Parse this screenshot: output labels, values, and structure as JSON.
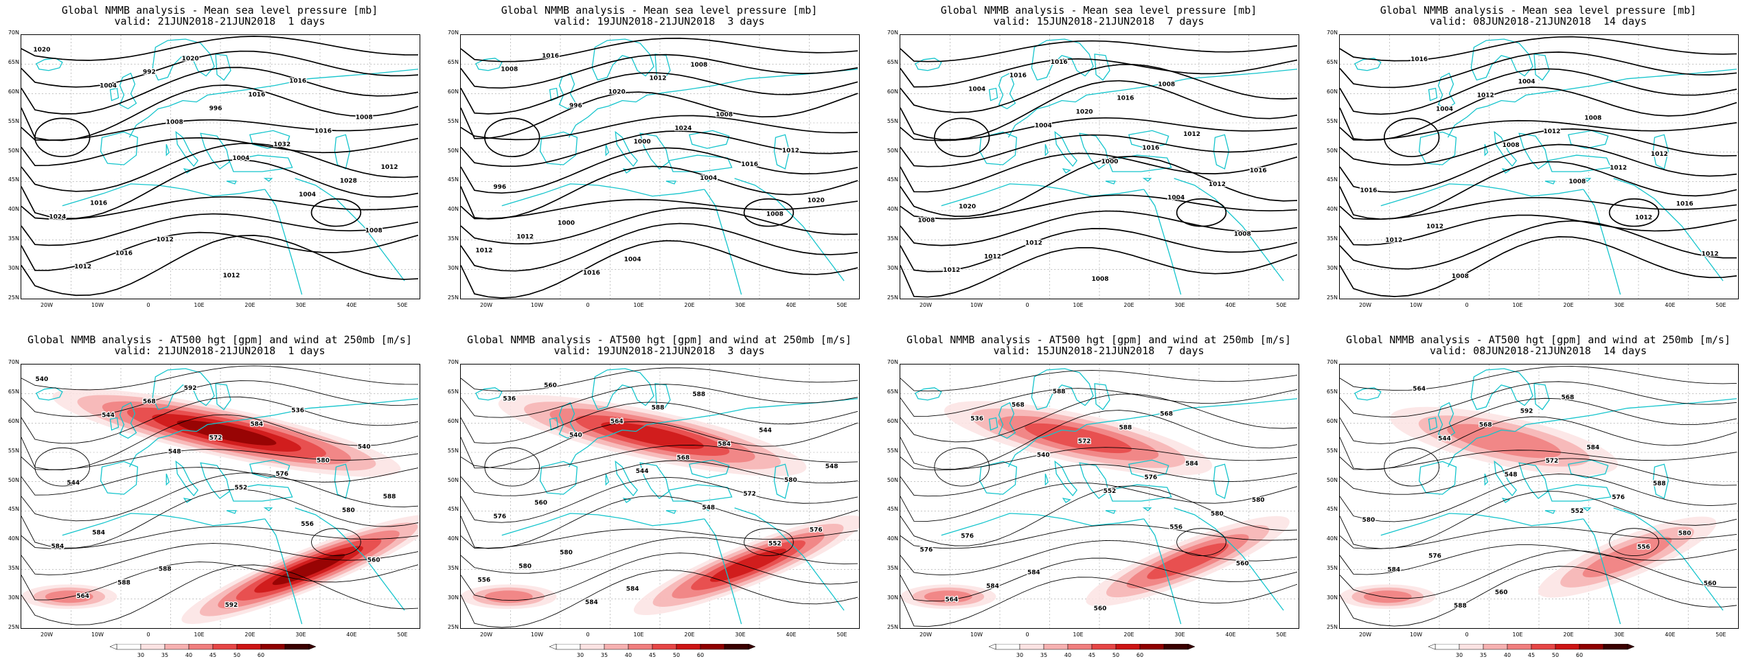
{
  "colors": {
    "coast": "#13c4cc",
    "isobar": "#000000",
    "grid": "#9a9a9a",
    "wind_scale": [
      "#fbe3e3",
      "#f6b1b1",
      "#f07e7e",
      "#e64646",
      "#cc1414",
      "#8e0000",
      "#3a0000"
    ]
  },
  "axes": {
    "lat_labels": [
      "70N",
      "65N",
      "60N",
      "55N",
      "50N",
      "45N",
      "40N",
      "35N",
      "30N",
      "25N"
    ],
    "lon_labels": [
      "20W",
      "10W",
      "0",
      "10E",
      "20E",
      "30E",
      "40E",
      "50E"
    ]
  },
  "top_row": [
    {
      "title": "Global NMMB analysis - Mean sea level pressure [mb]",
      "valid": "valid: 21JUN2018-21JUN2018  1 days",
      "isobar_labels": [
        "1020",
        "1004",
        "1008",
        "1004",
        "1004",
        "1008",
        "1012",
        "992",
        "996",
        "1032",
        "1028",
        "1024",
        "1016",
        "1020",
        "1016",
        "1016",
        "1012",
        "1016",
        "1012",
        "1012",
        "1016",
        "1008"
      ]
    },
    {
      "title": "Global NMMB analysis - Mean sea level pressure [mb]",
      "valid": "valid: 19JUN2018-21JUN2018  3 days",
      "isobar_labels": [
        "1008",
        "996",
        "1000",
        "1004",
        "1008",
        "1012",
        "1016",
        "1020",
        "1024",
        "1016",
        "1020",
        "1012",
        "1016",
        "1012",
        "1008",
        "1012",
        "996",
        "1000",
        "1004",
        "1008"
      ]
    },
    {
      "title": "Global NMMB analysis - Mean sea level pressure [mb]",
      "valid": "valid: 15JUN2018-21JUN2018  7 days",
      "isobar_labels": [
        "1004",
        "1004",
        "1000",
        "1004",
        "1008",
        "1012",
        "1016",
        "1020",
        "1016",
        "1012",
        "1008",
        "1012",
        "1016",
        "1016",
        "1012",
        "1016",
        "1020",
        "1012",
        "1008",
        "1008"
      ]
    },
    {
      "title": "Global NMMB analysis - Mean sea level pressure [mb]",
      "valid": "valid: 08JUN2018-21JUN2018  14 days",
      "isobar_labels": [
        "1004",
        "1008",
        "1008",
        "1012",
        "1012",
        "1016",
        "1012",
        "1012",
        "1012",
        "1016",
        "1012",
        "1008",
        "1004",
        "1008",
        "1012",
        "1016",
        "1012"
      ]
    }
  ],
  "bottom_row": [
    {
      "title": "Global NMMB analysis - AT500 hgt [gpm] and wind at 250mb [m/s]",
      "valid": "valid: 21JUN2018-21JUN2018  1 days",
      "height_labels": [
        "540",
        "544",
        "548",
        "552",
        "556",
        "560",
        "564",
        "568",
        "572",
        "576",
        "580",
        "584",
        "588",
        "592",
        "584",
        "580",
        "588",
        "584",
        "588",
        "592",
        "536",
        "540",
        "544"
      ]
    },
    {
      "title": "Global NMMB analysis - AT500 hgt [gpm] and wind at 250mb [m/s]",
      "valid": "valid: 19JUN2018-21JUN2018  3 days",
      "height_labels": [
        "536",
        "540",
        "544",
        "548",
        "552",
        "556",
        "560",
        "564",
        "568",
        "572",
        "576",
        "580",
        "584",
        "588",
        "584",
        "580",
        "576",
        "580",
        "584",
        "588",
        "544",
        "548",
        "560"
      ]
    },
    {
      "title": "Global NMMB analysis - AT500 hgt [gpm] and wind at 250mb [m/s]",
      "valid": "valid: 15JUN2018-21JUN2018  7 days",
      "height_labels": [
        "536",
        "540",
        "552",
        "556",
        "560",
        "564",
        "568",
        "572",
        "576",
        "580",
        "576",
        "584",
        "588",
        "588",
        "584",
        "580",
        "576",
        "584",
        "560",
        "568"
      ]
    },
    {
      "title": "Global NMMB analysis - AT500 hgt [gpm] and wind at 250mb [m/s]",
      "valid": "valid: 08JUN2018-21JUN2018  14 days",
      "height_labels": [
        "544",
        "548",
        "552",
        "556",
        "560",
        "564",
        "568",
        "572",
        "576",
        "580",
        "584",
        "588",
        "592",
        "584",
        "588",
        "580",
        "576",
        "560",
        "568"
      ]
    }
  ],
  "colorbar": {
    "ticks": [
      "30",
      "35",
      "40",
      "45",
      "50",
      "60"
    ]
  }
}
